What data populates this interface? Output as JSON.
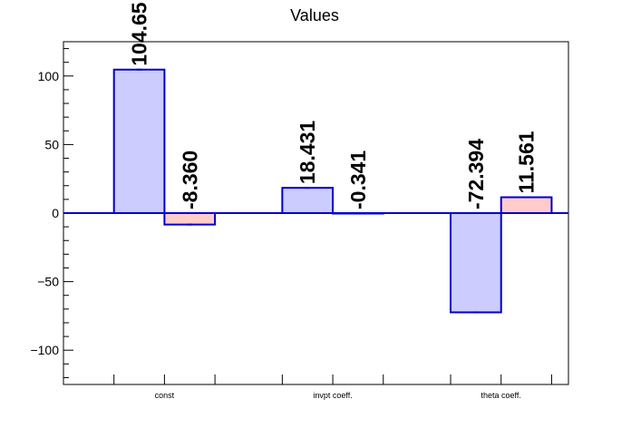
{
  "chart_data": {
    "type": "bar",
    "title": "Values",
    "xlabel": "",
    "ylabel": "",
    "categories": [
      "const",
      "invpt coeff.",
      "theta coeff."
    ],
    "ylim": [
      -125,
      125
    ],
    "y_ticks": [
      -100,
      -50,
      0,
      50,
      100
    ],
    "y_tick_labels": [
      "−100",
      "−50",
      "0",
      "50",
      "100"
    ],
    "series": [
      {
        "values": [
          104.65,
          18.431,
          -72.394
        ],
        "labels": [
          "104.65",
          "18.431",
          "-72.394"
        ],
        "fill": "#ccccff",
        "stroke": "#0000cc"
      },
      {
        "values": [
          -8.36,
          -0.341,
          11.561
        ],
        "labels": [
          "-8.360",
          "-0.341",
          "11.561"
        ],
        "fill": "#ffcccc",
        "stroke": "#0000cc"
      }
    ],
    "zero_line_color": "#0000cc",
    "grid": false
  }
}
